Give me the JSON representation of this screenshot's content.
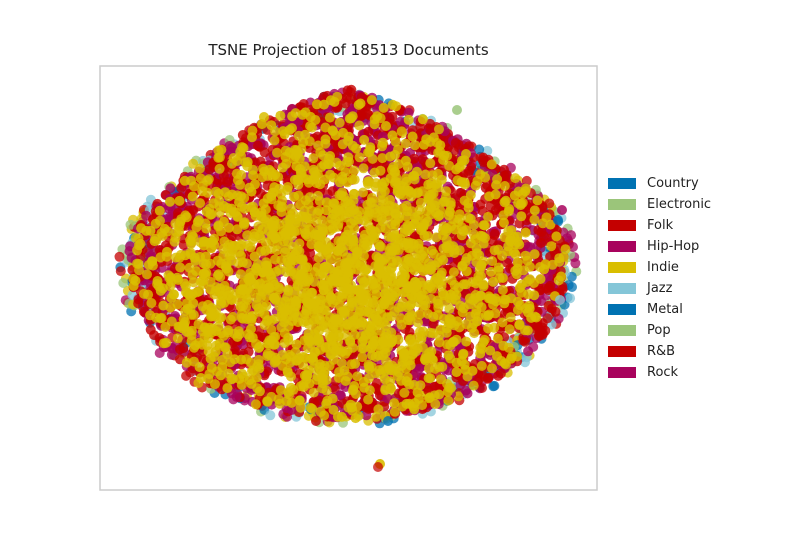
{
  "chart_data": {
    "type": "scatter",
    "title": "TSNE Projection of 18513 Documents",
    "xlabel": "",
    "ylabel": "",
    "grid": false,
    "legend_position": "right",
    "series": [
      {
        "name": "Country",
        "color": "#0072B2"
      },
      {
        "name": "Electronic",
        "color": "#9BC57A"
      },
      {
        "name": "Folk",
        "color": "#C40000"
      },
      {
        "name": "Hip-Hop",
        "color": "#A8035D"
      },
      {
        "name": "Indie",
        "color": "#D9BE00"
      },
      {
        "name": "Jazz",
        "color": "#84C6D8"
      },
      {
        "name": "Metal",
        "color": "#0072B2"
      },
      {
        "name": "Pop",
        "color": "#9BC57A"
      },
      {
        "name": "R&B",
        "color": "#C40000"
      },
      {
        "name": "Rock",
        "color": "#A8035D"
      }
    ]
  }
}
